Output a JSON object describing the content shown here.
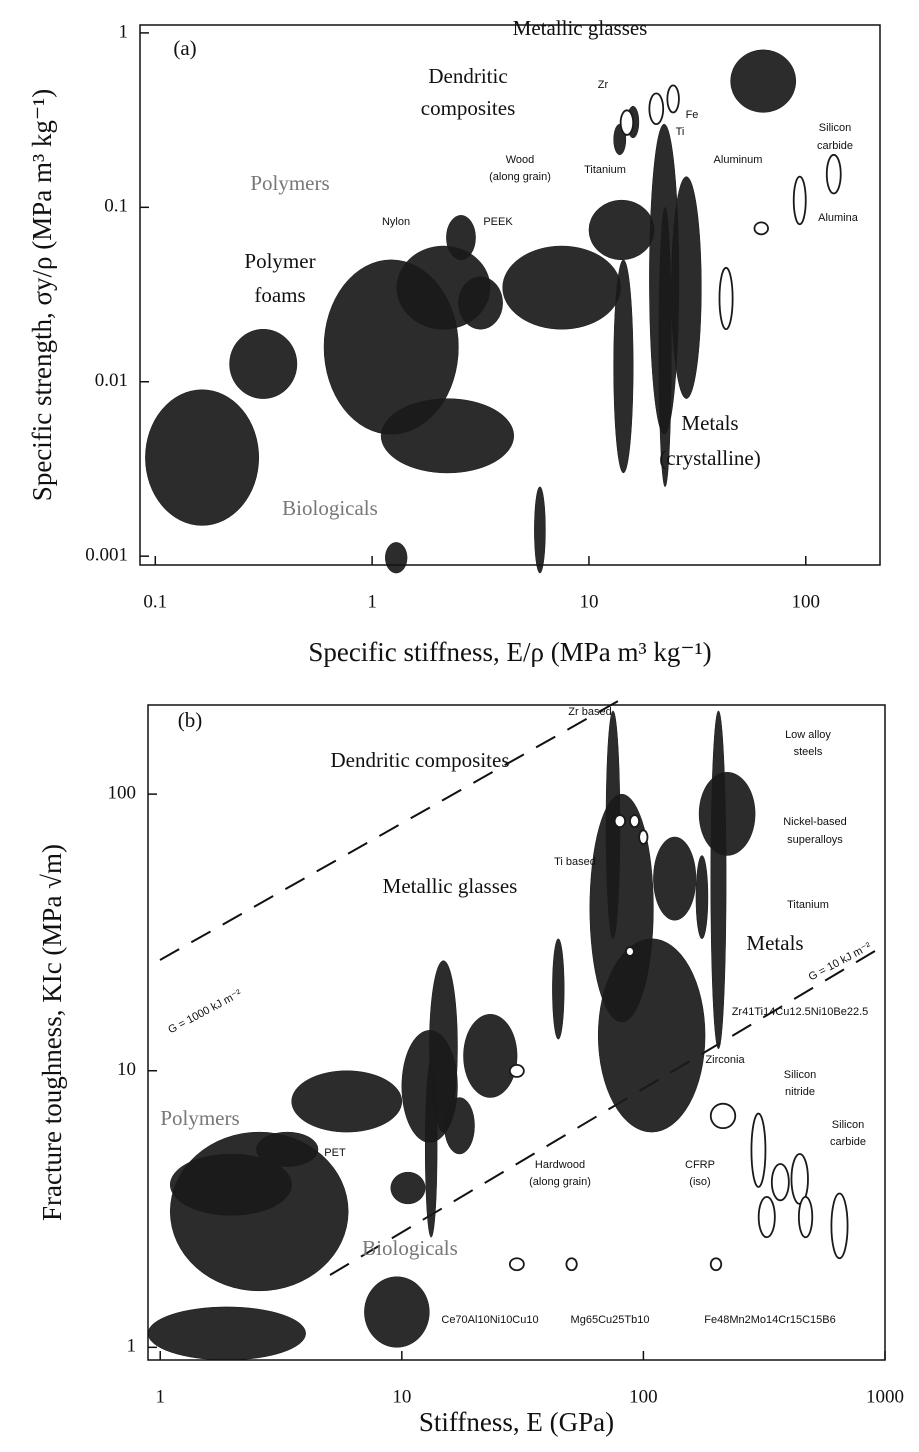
{
  "chart_data": [
    {
      "type": "ellipse",
      "panel": "(a)",
      "xlabel": "Specific stiffness, E/ρ (MPa m³ kg⁻¹)",
      "ylabel": "Specific strength, σy/ρ (MPa m³ kg⁻¹)",
      "log_x": true,
      "log_y": true,
      "xlim": [
        0.085,
        220
      ],
      "ylim": [
        0.00089,
        1.11
      ],
      "xticks": [
        0.1,
        1,
        10,
        100
      ],
      "yticks": [
        0.001,
        0.01,
        0.1,
        1
      ],
      "color": "#1a1a1a",
      "annotations": [
        "Metallic glasses",
        "Dendritic",
        "composites",
        "Zr",
        "Fe",
        "Ti",
        "Silicon",
        "carbide",
        "Polymers",
        "Wood",
        "(along grain)",
        "Titanium",
        "Aluminum",
        "Nylon",
        "PEEK",
        "Polymer",
        "foams",
        "Alumina",
        "Metals",
        "(crystalline)",
        "Biologicals"
      ],
      "regions": [
        {
          "x": [
            0.09,
            0.3
          ],
          "y": [
            0.0015,
            0.009
          ],
          "open": false
        },
        {
          "x": [
            0.22,
            0.45
          ],
          "y": [
            0.008,
            0.02
          ],
          "open": false
        },
        {
          "x": [
            0.6,
            2.5
          ],
          "y": [
            0.005,
            0.05
          ],
          "open": false
        },
        {
          "x": [
            1.1,
            4.5
          ],
          "y": [
            0.003,
            0.008
          ],
          "open": false
        },
        {
          "x": [
            1.3,
            3.5
          ],
          "y": [
            0.02,
            0.06
          ],
          "open": false
        },
        {
          "x": [
            2.2,
            3.0
          ],
          "y": [
            0.05,
            0.09
          ],
          "open": false
        },
        {
          "x": [
            2.5,
            4.0
          ],
          "y": [
            0.02,
            0.04
          ],
          "open": false
        },
        {
          "x": [
            1.15,
            1.45
          ],
          "y": [
            0.0008,
            0.0012
          ],
          "open": false
        },
        {
          "x": [
            5.6,
            6.3
          ],
          "y": [
            0.0008,
            0.0025
          ],
          "open": false
        },
        {
          "x": [
            4,
            14
          ],
          "y": [
            0.02,
            0.06
          ],
          "open": false
        },
        {
          "x": [
            10,
            20
          ],
          "y": [
            0.05,
            0.11
          ],
          "open": false
        },
        {
          "x": [
            13,
            16
          ],
          "y": [
            0.003,
            0.05
          ],
          "open": false
        },
        {
          "x": [
            19,
            26
          ],
          "y": [
            0.005,
            0.3
          ],
          "open": false
        },
        {
          "x": [
            24,
            33
          ],
          "y": [
            0.008,
            0.15
          ],
          "open": false
        },
        {
          "x": [
            21,
            24
          ],
          "y": [
            0.0025,
            0.1
          ],
          "open": false
        },
        {
          "x": [
            45,
            90
          ],
          "y": [
            0.35,
            0.8
          ],
          "open": false
        },
        {
          "x": [
            13,
            14.8
          ],
          "y": [
            0.2,
            0.3
          ],
          "open": false
        },
        {
          "x": [
            15,
            17
          ],
          "y": [
            0.25,
            0.38
          ],
          "open": false
        },
        {
          "x": [
            14,
            16
          ],
          "y": [
            0.26,
            0.36
          ],
          "open": true
        },
        {
          "x": [
            19,
            22
          ],
          "y": [
            0.3,
            0.45
          ],
          "open": true
        },
        {
          "x": [
            23,
            26
          ],
          "y": [
            0.35,
            0.5
          ],
          "open": true
        },
        {
          "x": [
            125,
            145
          ],
          "y": [
            0.12,
            0.2
          ],
          "open": true
        },
        {
          "x": [
            88,
            100
          ],
          "y": [
            0.08,
            0.15
          ],
          "open": true
        },
        {
          "x": [
            58,
            67
          ],
          "y": [
            0.07,
            0.082
          ],
          "open": true
        },
        {
          "x": [
            40,
            46
          ],
          "y": [
            0.02,
            0.045
          ],
          "open": true
        }
      ]
    },
    {
      "type": "ellipse",
      "panel": "(b)",
      "xlabel": "Stiffness, E (GPa)",
      "ylabel": "Fracture toughness, KIc (MPa √m)",
      "log_x": true,
      "log_y": true,
      "xlim": [
        0.89,
        1000
      ],
      "ylim": [
        0.9,
        210
      ],
      "xticks": [
        1,
        10,
        100,
        1000
      ],
      "yticks": [
        1,
        10,
        100
      ],
      "color": "#1a1a1a",
      "annotations": [
        "Zr based",
        "Low alloy",
        "steels",
        "Dendritic composites",
        "Nickel-based",
        "superalloys",
        "Ti based",
        "Metallic glasses",
        "Titanium",
        "Metals",
        "G = 1000 kJ m⁻²",
        "G = 10 kJ m⁻²",
        "Zr41Ti14Cu12.5Ni10Be22.5",
        "Zirconia",
        "Silicon",
        "nitride",
        "Silicon",
        "carbide",
        "Polymers",
        "PET",
        "Hardwood",
        "(along grain)",
        "CFRP",
        "(iso)",
        "Biologicals",
        "Ce70Al10Ni10Cu10",
        "Mg65Cu25Tb10",
        "Fe48Mn2Mo14Cr15C15B6"
      ],
      "regions": [
        {
          "x": [
            1.1,
            6
          ],
          "y": [
            1.6,
            6
          ],
          "open": false
        },
        {
          "x": [
            0.89,
            4
          ],
          "y": [
            0.9,
            1.4
          ],
          "open": false
        },
        {
          "x": [
            1.1,
            3.5
          ],
          "y": [
            3,
            5
          ],
          "open": false
        },
        {
          "x": [
            2.5,
            4.5
          ],
          "y": [
            4.5,
            6
          ],
          "open": false
        },
        {
          "x": [
            7,
            13
          ],
          "y": [
            1,
            1.8
          ],
          "open": false
        },
        {
          "x": [
            3.5,
            10
          ],
          "y": [
            6,
            10
          ],
          "open": false
        },
        {
          "x": [
            9,
            12.5
          ],
          "y": [
            3.3,
            4.3
          ],
          "open": false
        },
        {
          "x": [
            10,
            17
          ],
          "y": [
            5.5,
            14
          ],
          "open": false
        },
        {
          "x": [
            12.5,
            14
          ],
          "y": [
            2.5,
            11
          ],
          "open": false
        },
        {
          "x": [
            13,
            17
          ],
          "y": [
            6,
            25
          ],
          "open": false
        },
        {
          "x": [
            15,
            20
          ],
          "y": [
            5,
            8
          ],
          "open": false
        },
        {
          "x": [
            18,
            30
          ],
          "y": [
            8,
            16
          ],
          "open": false
        },
        {
          "x": [
            42,
            47
          ],
          "y": [
            13,
            30
          ],
          "open": false
        },
        {
          "x": [
            70,
            80
          ],
          "y": [
            30,
            200
          ],
          "open": false
        },
        {
          "x": [
            65,
            180
          ],
          "y": [
            6,
            30
          ],
          "open": false
        },
        {
          "x": [
            60,
            110
          ],
          "y": [
            15,
            100
          ],
          "open": false
        },
        {
          "x": [
            110,
            165
          ],
          "y": [
            35,
            70
          ],
          "open": false
        },
        {
          "x": [
            170,
            290
          ],
          "y": [
            60,
            120
          ],
          "open": false
        },
        {
          "x": [
            190,
            220
          ],
          "y": [
            12,
            200
          ],
          "open": false
        },
        {
          "x": [
            165,
            185
          ],
          "y": [
            30,
            60
          ],
          "open": false
        },
        {
          "x": [
            76,
            84
          ],
          "y": [
            76,
            84
          ],
          "open": true
        },
        {
          "x": [
            88,
            96
          ],
          "y": [
            76,
            84
          ],
          "open": true
        },
        {
          "x": [
            96,
            104
          ],
          "y": [
            66,
            74
          ],
          "open": true
        },
        {
          "x": [
            85,
            91
          ],
          "y": [
            26,
            28
          ],
          "open": true
        },
        {
          "x": [
            28,
            32
          ],
          "y": [
            9.5,
            10.5
          ],
          "open": true
        },
        {
          "x": [
            190,
            240
          ],
          "y": [
            6.2,
            7.6
          ],
          "open": true
        },
        {
          "x": [
            280,
            320
          ],
          "y": [
            3.8,
            7
          ],
          "open": true
        },
        {
          "x": [
            340,
            400
          ],
          "y": [
            3.4,
            4.6
          ],
          "open": true
        },
        {
          "x": [
            300,
            350
          ],
          "y": [
            2.5,
            3.5
          ],
          "open": true
        },
        {
          "x": [
            410,
            480
          ],
          "y": [
            3.3,
            5
          ],
          "open": true
        },
        {
          "x": [
            440,
            500
          ],
          "y": [
            2.5,
            3.5
          ],
          "open": true
        },
        {
          "x": [
            600,
            700
          ],
          "y": [
            2.1,
            3.6
          ],
          "open": true
        },
        {
          "x": [
            28,
            32
          ],
          "y": [
            1.9,
            2.1
          ],
          "open": true
        },
        {
          "x": [
            48,
            53
          ],
          "y": [
            1.9,
            2.1
          ],
          "open": true
        },
        {
          "x": [
            190,
            210
          ],
          "y": [
            1.9,
            2.1
          ],
          "open": true
        }
      ]
    }
  ]
}
